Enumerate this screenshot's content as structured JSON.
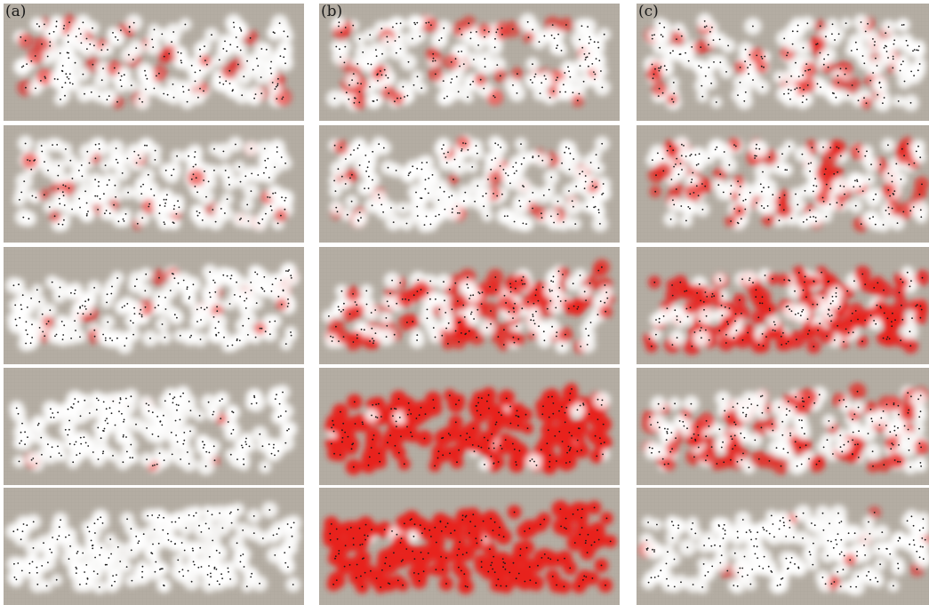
{
  "figure": {
    "panel_labels": [
      "(a)",
      "(b)",
      "(c)"
    ],
    "columns": [
      {
        "id": "a",
        "rows_red_level": [
          0.18,
          0.12,
          0.08,
          0.04,
          0.0
        ]
      },
      {
        "id": "b",
        "rows_red_level": [
          0.2,
          0.14,
          0.45,
          0.95,
          0.98
        ]
      },
      {
        "id": "c",
        "rows_red_level": [
          0.18,
          0.4,
          0.7,
          0.45,
          0.06
        ]
      }
    ],
    "colors": {
      "background": "#b4ada3",
      "blob": "#ffffff",
      "red": "#e8221d",
      "dot": "#1a1a1a"
    }
  }
}
